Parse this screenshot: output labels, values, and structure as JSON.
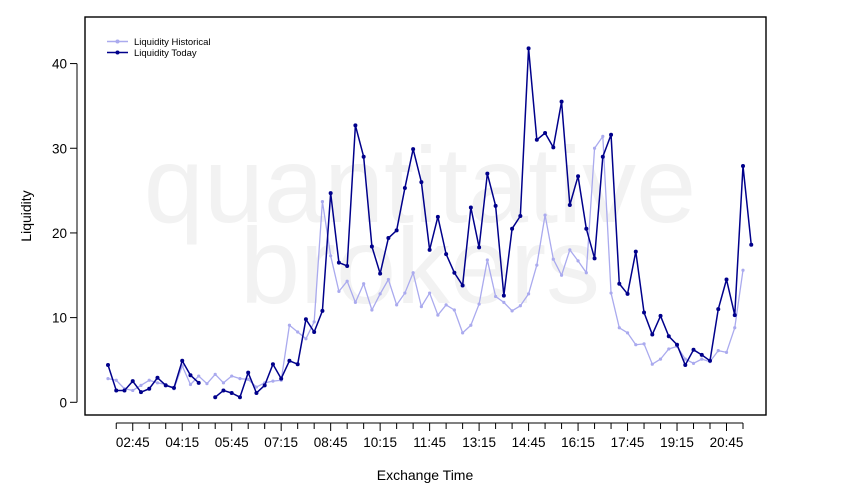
{
  "chart_data": {
    "type": "line",
    "watermark": [
      "quantitative",
      "brokers"
    ],
    "xlabel": "Exchange Time",
    "ylabel": "Liquidity",
    "ylim": [
      -1.5,
      45.5
    ],
    "yticks": [
      0,
      10,
      20,
      30,
      40
    ],
    "xtick_labels": [
      "02:45",
      "04:15",
      "05:45",
      "07:15",
      "08:45",
      "10:15",
      "11:45",
      "13:15",
      "14:45",
      "16:15",
      "17:45",
      "19:15",
      "20:45"
    ],
    "x_start": "02:00",
    "x_step_minutes": 15,
    "grid": false,
    "legend_position": "top-left",
    "colors": {
      "historical": "#aaaaee",
      "today": "#00008b"
    },
    "series": [
      {
        "name": "Liquidity Historical",
        "values": [
          2.8,
          2.6,
          1.6,
          1.4,
          2.0,
          2.6,
          2.3,
          2.1,
          1.6,
          4.3,
          2.1,
          3.1,
          2.2,
          3.3,
          2.3,
          3.1,
          2.8,
          2.7,
          1.8,
          2.3,
          2.5,
          2.6,
          9.1,
          8.3,
          7.5,
          9.5,
          23.7,
          17.3,
          13.1,
          14.3,
          11.8,
          14.0,
          10.9,
          12.8,
          14.5,
          11.5,
          12.9,
          15.3,
          11.3,
          12.9,
          10.3,
          11.5,
          10.9,
          8.2,
          9.1,
          11.6,
          16.8,
          12.5,
          11.8,
          10.8,
          11.4,
          12.8,
          16.2,
          22.1,
          16.9,
          15.0,
          18.0,
          16.7,
          15.3,
          30.0,
          31.4,
          12.9,
          8.8,
          8.2,
          6.8,
          6.9,
          4.5,
          5.1,
          6.3,
          6.6,
          5.1,
          4.6,
          5.1,
          4.8,
          6.1,
          5.9,
          8.8,
          15.6
        ]
      },
      {
        "name": "Liquidity Today",
        "values": [
          4.4,
          1.4,
          1.4,
          2.5,
          1.2,
          1.6,
          2.9,
          2.0,
          1.7,
          4.9,
          3.2,
          2.3,
          null,
          0.6,
          1.4,
          1.1,
          0.6,
          3.5,
          1.1,
          2.0,
          4.5,
          2.8,
          4.9,
          4.5,
          9.8,
          8.3,
          10.8,
          24.7,
          16.5,
          16.1,
          32.7,
          29.0,
          18.4,
          15.2,
          19.4,
          20.3,
          25.3,
          29.9,
          26.0,
          18.0,
          21.9,
          17.5,
          15.3,
          13.8,
          23.0,
          18.3,
          27.0,
          23.2,
          12.6,
          20.5,
          22.0,
          41.8,
          31.0,
          31.8,
          30.1,
          35.5,
          23.3,
          26.7,
          20.5,
          17.0,
          29.0,
          31.6,
          14.0,
          12.8,
          17.8,
          10.6,
          8.0,
          10.2,
          7.8,
          6.8,
          4.4,
          6.2,
          5.6,
          4.9,
          11.0,
          14.5,
          10.3,
          27.9,
          18.6
        ]
      }
    ]
  }
}
